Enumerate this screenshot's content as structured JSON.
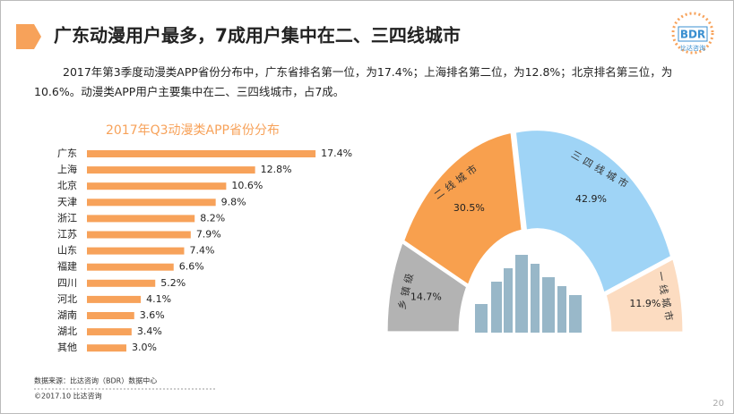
{
  "header": {
    "title": "广东动漫用户最多，7成用户集中在二、三四线城市"
  },
  "logo": {
    "name": "BDR",
    "tagline": "比达咨询"
  },
  "description": "2017年第3季度动漫类APP省份分布中，广东省排名第一位，为17.4%；上海排名第二位，为12.8%；北京排名第三位，为10.6%。动漫类APP用户主要集中在二、三四线城市，占7成。",
  "chart_data": [
    {
      "type": "bar",
      "orientation": "horizontal",
      "title": "2017年Q3动漫类APP省份分布",
      "categories": [
        "广东",
        "上海",
        "北京",
        "天津",
        "浙江",
        "江苏",
        "山东",
        "福建",
        "四川",
        "河北",
        "湖南",
        "湖北",
        "其他"
      ],
      "values": [
        17.4,
        12.8,
        10.6,
        9.8,
        8.2,
        7.9,
        7.4,
        6.6,
        5.2,
        4.1,
        3.6,
        3.4,
        3.0
      ],
      "value_labels": [
        "17.4%",
        "12.8%",
        "10.6%",
        "9.8%",
        "8.2%",
        "7.9%",
        "7.4%",
        "6.6%",
        "5.2%",
        "4.1%",
        "3.6%",
        "3.4%",
        "3.0%"
      ],
      "color": "#f7a25a"
    },
    {
      "type": "half-donut",
      "categories": [
        "乡镇级",
        "二线城市",
        "三四线城市",
        "一线城市"
      ],
      "values": [
        14.7,
        30.5,
        42.9,
        11.9
      ],
      "value_labels": [
        "14.7%",
        "30.5%",
        "42.9%",
        "11.9%"
      ],
      "colors": [
        "#b3b3b3",
        "#f8a04e",
        "#9fd4f6",
        "#fcdcc1"
      ]
    }
  ],
  "footer": {
    "source": "数据来源：比达咨询（BDR）数据中心",
    "copyright": "©2017.10 比达咨询",
    "page": 20
  }
}
